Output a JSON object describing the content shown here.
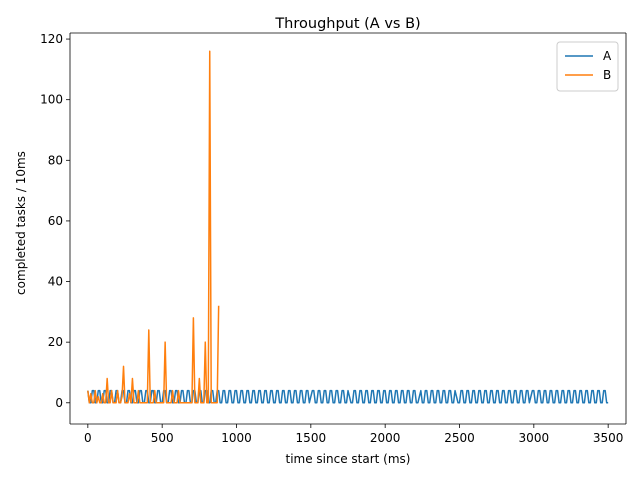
{
  "chart_data": {
    "type": "line",
    "title": "Throughput (A vs B)",
    "xlabel": "time since start (ms)",
    "ylabel": "completed tasks / 10ms",
    "xlim": [
      -120,
      3620
    ],
    "ylim": [
      -7,
      122
    ],
    "xticks": [
      0,
      500,
      1000,
      1500,
      2000,
      2500,
      3000,
      3500
    ],
    "yticks": [
      0,
      20,
      40,
      60,
      80,
      100,
      120
    ],
    "grid": false,
    "legend_position": "top-right",
    "series": [
      {
        "name": "A",
        "color": "#1f77b4",
        "pattern": {
          "x_start": 0,
          "x_end": 3500,
          "x_step": 10,
          "values": [
            4,
            0,
            0,
            4
          ],
          "jitter_x": [
            1500,
            1760,
            2230,
            2480,
            2980
          ]
        }
      },
      {
        "name": "B",
        "color": "#ff7f0e",
        "x": [
          0,
          10,
          20,
          30,
          40,
          50,
          60,
          70,
          80,
          90,
          100,
          110,
          120,
          130,
          140,
          150,
          160,
          170,
          180,
          190,
          200,
          210,
          220,
          230,
          240,
          250,
          260,
          270,
          280,
          290,
          300,
          310,
          320,
          330,
          340,
          350,
          360,
          370,
          380,
          390,
          400,
          410,
          420,
          430,
          440,
          450,
          460,
          470,
          480,
          490,
          500,
          510,
          520,
          530,
          540,
          550,
          560,
          570,
          580,
          590,
          600,
          610,
          620,
          630,
          640,
          650,
          660,
          670,
          680,
          690,
          700,
          710,
          720,
          730,
          740,
          750,
          760,
          770,
          780,
          790,
          800,
          810,
          820,
          830,
          840,
          850,
          860,
          870,
          880
        ],
        "y": [
          4,
          0,
          3,
          0,
          0,
          4,
          0,
          2,
          0,
          0,
          3,
          0,
          0,
          8,
          0,
          0,
          4,
          0,
          0,
          0,
          4,
          0,
          0,
          2,
          12,
          0,
          0,
          0,
          3,
          0,
          8,
          0,
          0,
          0,
          4,
          0,
          0,
          0,
          0,
          0,
          0,
          24,
          0,
          0,
          0,
          4,
          0,
          0,
          0,
          0,
          0,
          0,
          20,
          0,
          0,
          0,
          0,
          4,
          0,
          0,
          0,
          4,
          0,
          0,
          0,
          0,
          0,
          0,
          0,
          0,
          0,
          28,
          0,
          0,
          0,
          8,
          0,
          0,
          0,
          20,
          0,
          0,
          116,
          0,
          0,
          0,
          0,
          0,
          32
        ]
      }
    ]
  }
}
